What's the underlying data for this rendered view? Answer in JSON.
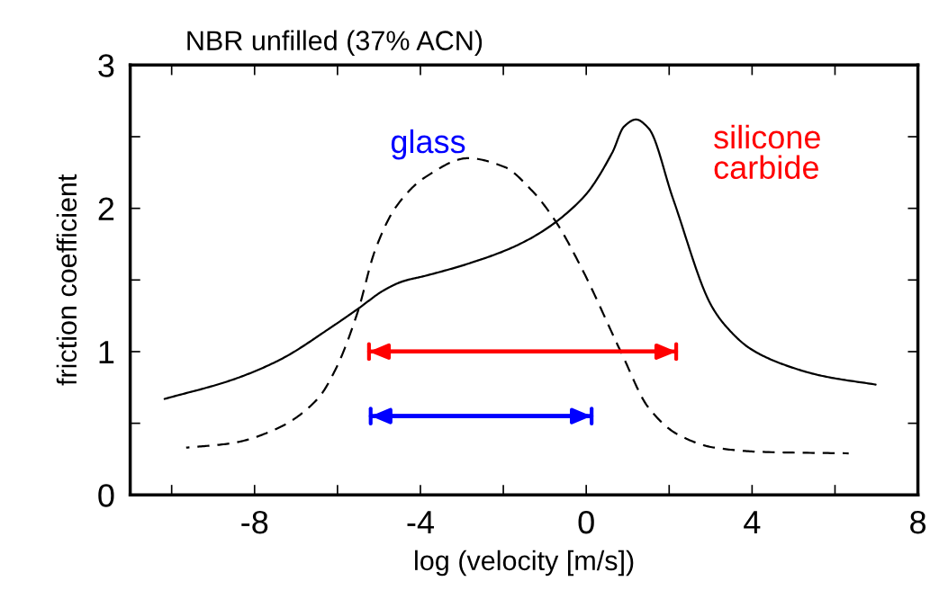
{
  "chart_data": {
    "type": "line",
    "title": "NBR unfilled (37% ACN)",
    "xlabel": "log (velocity [m/s])",
    "ylabel": "friction coefficient",
    "xlim": [
      -11,
      8
    ],
    "ylim": [
      0,
      3
    ],
    "xticks": [
      {
        "value": -10,
        "label": null
      },
      -8,
      {
        "value": -6,
        "label": null
      },
      -4,
      {
        "value": -2,
        "label": null
      },
      0,
      {
        "value": 2,
        "label": null
      },
      4,
      {
        "value": 6,
        "label": null
      },
      8
    ],
    "yticks": [
      0,
      {
        "value": 0.5,
        "label": null
      },
      1,
      {
        "value": 1.5,
        "label": null
      },
      2,
      {
        "value": 2.5,
        "label": null
      },
      3
    ],
    "grid": false,
    "legend": false,
    "series": [
      {
        "color": "#000000",
        "line_style": "solid",
        "x": [
          -10.17,
          -8.57,
          -7.41,
          -6.1,
          -5.5,
          -4.87,
          -4.43,
          -3.87,
          -2.78,
          -1.54,
          -0.09,
          0.63,
          0.91,
          1.2,
          1.5,
          2.09,
          3.02,
          3.39,
          3.96,
          4.76,
          5.7,
          6.98
        ],
        "values": [
          0.67,
          0.8,
          0.94,
          1.18,
          1.3,
          1.43,
          1.49,
          1.53,
          1.62,
          1.76,
          2.07,
          2.39,
          2.57,
          2.62,
          2.56,
          2.07,
          1.32,
          1.17,
          1.02,
          0.91,
          0.83,
          0.77
        ]
      },
      {
        "color": "#000000",
        "line_style": "dashed",
        "x": [
          -9.65,
          -8.57,
          -7.48,
          -6.48,
          -6.04,
          -5.52,
          -5.09,
          -4.59,
          -3.87,
          -2.85,
          -1.98,
          -1.33,
          -0.74,
          -0.09,
          0.85,
          1.5,
          2.22,
          3.09,
          4.26,
          6.33
        ],
        "values": [
          0.33,
          0.36,
          0.46,
          0.67,
          0.88,
          1.27,
          1.71,
          2.01,
          2.22,
          2.35,
          2.29,
          2.13,
          1.91,
          1.57,
          0.99,
          0.61,
          0.42,
          0.33,
          0.3,
          0.29
        ]
      },
      {
        "name": "glass",
        "color": "#0000ff",
        "line_style": "solid",
        "x": [
          -5.2,
          0.13
        ],
        "values": [
          0.55,
          0.55
        ]
      },
      {
        "name": "silicone\ncarbide",
        "color": "#ff0000",
        "line_style": "solid",
        "x": [
          -5.24,
          2.17
        ],
        "values": [
          1.0,
          1.0
        ]
      }
    ]
  }
}
